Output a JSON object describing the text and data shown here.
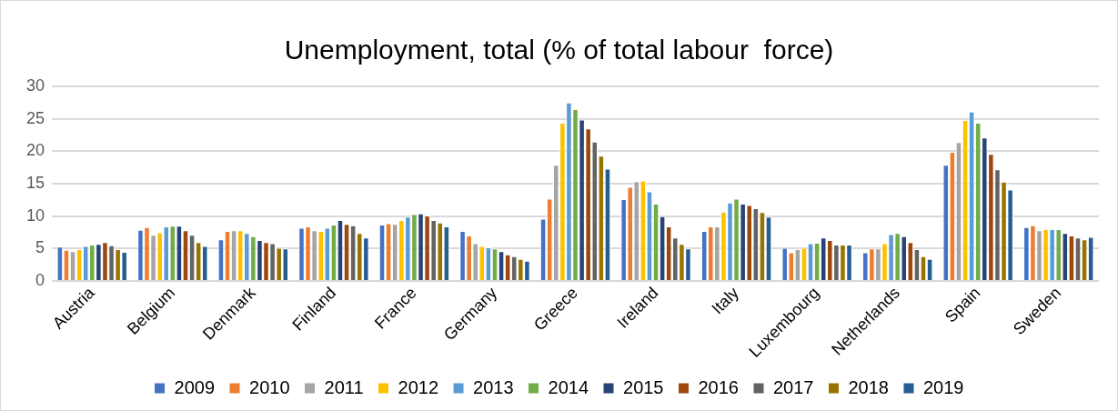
{
  "chart_data": {
    "type": "bar",
    "title": "Unemployment, total (% of total labour  force)",
    "categories": [
      "Austria",
      "Belgium",
      "Denmark",
      "Finland",
      "France",
      "Germany",
      "Greece",
      "Ireland",
      "Italy",
      "Luxembourg",
      "Netherlands",
      "Spain",
      "Sweden"
    ],
    "series": [
      {
        "name": "2009",
        "color": "#4472c4",
        "values": [
          5.3,
          7.9,
          6.4,
          8.2,
          8.7,
          7.7,
          9.6,
          12.6,
          7.7,
          5.1,
          4.4,
          17.9,
          8.3
        ]
      },
      {
        "name": "2010",
        "color": "#ed7d31",
        "values": [
          4.8,
          8.3,
          7.7,
          8.4,
          8.9,
          7.0,
          12.7,
          14.5,
          8.4,
          4.4,
          5.0,
          19.9,
          8.6
        ]
      },
      {
        "name": "2011",
        "color": "#a5a5a5",
        "values": [
          4.6,
          7.1,
          7.8,
          7.8,
          8.8,
          5.8,
          17.9,
          15.4,
          8.4,
          4.9,
          5.0,
          21.4,
          7.8
        ]
      },
      {
        "name": "2012",
        "color": "#ffc000",
        "values": [
          4.9,
          7.5,
          7.8,
          7.7,
          9.4,
          5.4,
          24.4,
          15.5,
          10.7,
          5.1,
          5.8,
          24.8,
          8.0
        ]
      },
      {
        "name": "2013",
        "color": "#5b9bd5",
        "values": [
          5.4,
          8.4,
          7.4,
          8.2,
          9.9,
          5.2,
          27.5,
          13.8,
          12.1,
          5.8,
          7.2,
          26.1,
          8.0
        ]
      },
      {
        "name": "2014",
        "color": "#70ad47",
        "values": [
          5.6,
          8.5,
          6.9,
          8.7,
          10.3,
          5.0,
          26.5,
          11.9,
          12.7,
          5.9,
          7.4,
          24.4,
          8.0
        ]
      },
      {
        "name": "2015",
        "color": "#264478",
        "values": [
          5.7,
          8.5,
          6.3,
          9.4,
          10.4,
          4.6,
          24.9,
          10.0,
          11.9,
          6.7,
          6.9,
          22.1,
          7.4
        ]
      },
      {
        "name": "2016",
        "color": "#9e480e",
        "values": [
          6.0,
          7.8,
          6.0,
          8.8,
          10.1,
          4.1,
          23.5,
          8.4,
          11.7,
          6.3,
          6.0,
          19.6,
          7.0
        ]
      },
      {
        "name": "2017",
        "color": "#636363",
        "values": [
          5.5,
          7.1,
          5.8,
          8.6,
          9.4,
          3.8,
          21.5,
          6.7,
          11.2,
          5.6,
          4.9,
          17.2,
          6.7
        ]
      },
      {
        "name": "2018",
        "color": "#997300",
        "values": [
          4.9,
          6.0,
          5.1,
          7.4,
          9.0,
          3.4,
          19.3,
          5.7,
          10.6,
          5.6,
          3.8,
          15.3,
          6.4
        ]
      },
      {
        "name": "2019",
        "color": "#255e91",
        "values": [
          4.5,
          5.4,
          5.0,
          6.7,
          8.4,
          3.1,
          17.3,
          5.0,
          9.9,
          5.6,
          3.4,
          14.1,
          6.8
        ]
      }
    ],
    "ylim": [
      0,
      30
    ],
    "yticks": [
      0,
      5,
      10,
      15,
      20,
      25,
      30
    ],
    "grid": "y",
    "legend": "bottom"
  }
}
